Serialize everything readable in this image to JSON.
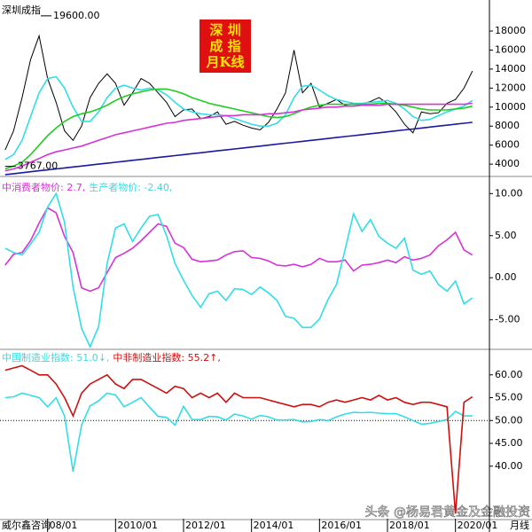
{
  "chart_data": [
    {
      "type": "line",
      "xlim": [
        2006.6,
        2021.0
      ],
      "ylim": [
        2800,
        20800
      ],
      "yticks": [
        4000,
        6000,
        8000,
        10000,
        12000,
        14000,
        16000,
        18000
      ],
      "x": [
        2006.75,
        2007.0,
        2007.25,
        2007.5,
        2007.75,
        2008.0,
        2008.25,
        2008.5,
        2008.75,
        2009.0,
        2009.25,
        2009.5,
        2009.75,
        2010.0,
        2010.25,
        2010.5,
        2010.75,
        2011.0,
        2011.25,
        2011.5,
        2011.75,
        2012.0,
        2012.25,
        2012.5,
        2012.75,
        2013.0,
        2013.25,
        2013.5,
        2013.75,
        2014.0,
        2014.25,
        2014.5,
        2014.75,
        2015.0,
        2015.25,
        2015.5,
        2015.75,
        2016.0,
        2016.25,
        2016.5,
        2016.75,
        2017.0,
        2017.25,
        2017.5,
        2017.75,
        2018.0,
        2018.25,
        2018.5,
        2018.75,
        2019.0,
        2019.25,
        2019.5,
        2019.75,
        2020.0,
        2020.25,
        2020.5
      ],
      "series": [
        {
          "name": "深圳成指",
          "color": "#000000",
          "values": [
            5500,
            7500,
            11000,
            15000,
            17500,
            13000,
            10500,
            7500,
            6500,
            8000,
            11000,
            12500,
            13500,
            12500,
            10200,
            11500,
            13000,
            12500,
            11500,
            10500,
            9000,
            9700,
            9800,
            8800,
            9000,
            9500,
            8200,
            8500,
            8100,
            7800,
            7600,
            8400,
            9800,
            11500,
            16000,
            11500,
            12500,
            10000,
            10400,
            10800,
            10200,
            10400,
            10300,
            10600,
            11000,
            10400,
            9500,
            8200,
            7300,
            9500,
            9300,
            9400,
            10400,
            10800,
            12000,
            13800
          ]
        },
        {
          "color": "#33dde6",
          "values": [
            4500,
            5000,
            6500,
            9000,
            11500,
            13000,
            13200,
            12000,
            10000,
            8500,
            8500,
            9500,
            11000,
            12000,
            12300,
            12000,
            11800,
            12000,
            11800,
            11300,
            10500,
            9800,
            9500,
            9300,
            9200,
            9200,
            9100,
            8800,
            8500,
            8200,
            8000,
            8000,
            8300,
            9200,
            11000,
            12200,
            12300,
            11800,
            11200,
            10800,
            10600,
            10400,
            10400,
            10500,
            10600,
            10700,
            10400,
            9800,
            9000,
            8600,
            8700,
            9100,
            9500,
            9800,
            10100,
            10700
          ]
        },
        {
          "color": "#22cc22",
          "values": [
            3500,
            3800,
            4200,
            5000,
            6000,
            7000,
            7800,
            8500,
            9000,
            9300,
            9500,
            9800,
            10200,
            10700,
            11100,
            11400,
            11600,
            11800,
            11900,
            11900,
            11700,
            11400,
            11000,
            10700,
            10400,
            10200,
            10000,
            9800,
            9600,
            9400,
            9200,
            9000,
            8900,
            9000,
            9300,
            9700,
            10000,
            10200,
            10300,
            10300,
            10300,
            10300,
            10300,
            10300,
            10400,
            10400,
            10300,
            10200,
            10000,
            9800,
            9700,
            9700,
            9700,
            9800,
            9900,
            10100
          ]
        },
        {
          "color": "#d633d6",
          "values": [
            3300,
            3500,
            3800,
            4200,
            4600,
            5000,
            5300,
            5500,
            5700,
            5900,
            6200,
            6500,
            6800,
            7100,
            7300,
            7500,
            7700,
            7900,
            8100,
            8300,
            8400,
            8600,
            8700,
            8800,
            8900,
            9000,
            9100,
            9100,
            9200,
            9200,
            9200,
            9300,
            9300,
            9400,
            9500,
            9700,
            9800,
            9900,
            10000,
            10000,
            10100,
            10100,
            10200,
            10200,
            10200,
            10300,
            10300,
            10300,
            10300,
            10300,
            10300,
            10300,
            10300,
            10300,
            10300,
            10400
          ]
        },
        {
          "color": "#1a1aa0",
          "values": [
            2900,
            3000,
            3100,
            3200,
            3300,
            3400,
            3500,
            3600,
            3700,
            3800,
            3900,
            4000,
            4100,
            4200,
            4300,
            4400,
            4500,
            4600,
            4700,
            4800,
            4900,
            5000,
            5100,
            5200,
            5300,
            5400,
            5500,
            5600,
            5700,
            5800,
            5900,
            6000,
            6100,
            6200,
            6300,
            6400,
            6500,
            6600,
            6700,
            6800,
            6900,
            7000,
            7100,
            7200,
            7300,
            7400,
            7500,
            7600,
            7700,
            7800,
            7900,
            8000,
            8100,
            8200,
            8300,
            8400
          ]
        }
      ],
      "annotations": [
        {
          "label": "19600.00",
          "x": 2007.8,
          "y": 19600
        },
        {
          "label": "3767.00",
          "x": 2006.75,
          "y": 3767
        }
      ]
    },
    {
      "type": "line",
      "xlim": [
        2006.6,
        2021.0
      ],
      "ylim": [
        -8.4,
        11.4
      ],
      "yticks": [
        {
          "value": -5,
          "label": "-5.00"
        },
        {
          "value": 0,
          "label": "0.00"
        },
        {
          "value": 5,
          "label": "5.00"
        },
        {
          "value": 10,
          "label": "10.00"
        }
      ],
      "x": [
        2006.75,
        2007.0,
        2007.25,
        2007.5,
        2007.75,
        2008.0,
        2008.25,
        2008.5,
        2008.75,
        2009.0,
        2009.25,
        2009.5,
        2009.75,
        2010.0,
        2010.25,
        2010.5,
        2010.75,
        2011.0,
        2011.25,
        2011.5,
        2011.75,
        2012.0,
        2012.25,
        2012.5,
        2012.75,
        2013.0,
        2013.25,
        2013.5,
        2013.75,
        2014.0,
        2014.25,
        2014.5,
        2014.75,
        2015.0,
        2015.25,
        2015.5,
        2015.75,
        2016.0,
        2016.25,
        2016.5,
        2016.75,
        2017.0,
        2017.25,
        2017.5,
        2017.75,
        2018.0,
        2018.25,
        2018.5,
        2018.75,
        2019.0,
        2019.25,
        2019.5,
        2019.75,
        2020.0,
        2020.25,
        2020.5
      ],
      "series": [
        {
          "name": "中消费者物价: 2.7,",
          "color": "#d633d6",
          "values": [
            1.5,
            2.8,
            3.0,
            4.4,
            6.5,
            8.3,
            7.7,
            4.9,
            3.0,
            -1.2,
            -1.6,
            -1.2,
            0.6,
            2.4,
            2.9,
            3.5,
            4.4,
            5.4,
            6.4,
            6.1,
            4.1,
            3.6,
            2.2,
            1.9,
            2.0,
            2.1,
            2.7,
            3.1,
            3.2,
            2.4,
            2.3,
            2.0,
            1.5,
            1.4,
            1.6,
            1.3,
            1.6,
            2.3,
            1.9,
            1.9,
            2.1,
            0.8,
            1.5,
            1.6,
            1.8,
            2.1,
            1.8,
            2.5,
            2.1,
            2.3,
            2.7,
            3.8,
            4.5,
            5.4,
            3.3,
            2.7
          ]
        },
        {
          "name": "生产者物价: -2.40,",
          "color": "#33dde6",
          "values": [
            3.5,
            3.0,
            2.7,
            4.0,
            5.4,
            8.4,
            10.0,
            6.6,
            -1.1,
            -6.0,
            -8.2,
            -5.8,
            1.7,
            5.9,
            6.4,
            4.3,
            5.9,
            7.3,
            7.5,
            5.0,
            1.7,
            -0.3,
            -2.1,
            -3.5,
            -1.9,
            -1.6,
            -2.7,
            -1.3,
            -1.4,
            -2.0,
            -1.1,
            -1.8,
            -2.7,
            -4.6,
            -4.8,
            -5.9,
            -5.9,
            -4.9,
            -2.6,
            -0.8,
            3.3,
            7.6,
            5.5,
            6.9,
            4.9,
            4.1,
            3.5,
            4.7,
            0.9,
            0.4,
            0.8,
            -0.8,
            -1.6,
            -0.4,
            -3.1,
            -2.4
          ]
        }
      ]
    },
    {
      "type": "line",
      "xlim": [
        2006.6,
        2021.0
      ],
      "ylim": [
        28.5,
        65
      ],
      "refline": 50,
      "yticks": [
        {
          "value": 40,
          "label": "40.00"
        },
        {
          "value": 45,
          "label": "45.00"
        },
        {
          "value": 50,
          "label": "50.00"
        },
        {
          "value": 55,
          "label": "55.00"
        },
        {
          "value": 60,
          "label": "60.00"
        }
      ],
      "xticks": [
        {
          "value": 2008.0,
          "label": "08/01"
        },
        {
          "value": 2010.0,
          "label": "2010/01"
        },
        {
          "value": 2012.0,
          "label": "2012/01"
        },
        {
          "value": 2014.0,
          "label": "2014/01"
        },
        {
          "value": 2016.0,
          "label": "2016/01"
        },
        {
          "value": 2018.0,
          "label": "2018/01"
        },
        {
          "value": 2020.0,
          "label": "2020/01"
        }
      ],
      "x": [
        2006.75,
        2007.0,
        2007.25,
        2007.5,
        2007.75,
        2008.0,
        2008.25,
        2008.5,
        2008.75,
        2009.0,
        2009.25,
        2009.5,
        2009.75,
        2010.0,
        2010.25,
        2010.5,
        2010.75,
        2011.0,
        2011.25,
        2011.5,
        2011.75,
        2012.0,
        2012.25,
        2012.5,
        2012.75,
        2013.0,
        2013.25,
        2013.5,
        2013.75,
        2014.0,
        2014.25,
        2014.5,
        2014.75,
        2015.0,
        2015.25,
        2015.5,
        2015.75,
        2016.0,
        2016.25,
        2016.5,
        2016.75,
        2017.0,
        2017.25,
        2017.5,
        2017.75,
        2018.0,
        2018.25,
        2018.5,
        2018.75,
        2019.0,
        2019.25,
        2019.5,
        2019.75,
        2020.0,
        2020.25,
        2020.5
      ],
      "series": [
        {
          "name": "中国制造业指数: 51.0↓,",
          "color": "#33dde6",
          "values": [
            55.0,
            55.2,
            56.0,
            55.5,
            55.0,
            53.0,
            55.0,
            51.0,
            38.8,
            49.0,
            53.2,
            54.3,
            56.0,
            55.6,
            53.0,
            54.0,
            55.0,
            52.9,
            50.9,
            50.7,
            49.0,
            53.1,
            50.2,
            50.2,
            50.9,
            50.8,
            50.1,
            51.4,
            51.0,
            50.3,
            51.1,
            50.8,
            50.1,
            50.1,
            50.2,
            49.7,
            49.8,
            50.2,
            50.0,
            50.8,
            51.4,
            51.8,
            51.7,
            51.8,
            51.6,
            51.5,
            51.5,
            50.8,
            50.0,
            49.2,
            49.4,
            49.8,
            50.2,
            52.0,
            51.0,
            51.0
          ]
        },
        {
          "name": "中非制造业指数: 55.2↑,",
          "color": "#cc1111",
          "values": [
            61.0,
            61.5,
            62.0,
            61.0,
            60.0,
            60.0,
            58.0,
            55.0,
            51.0,
            56.0,
            58.0,
            59.0,
            60.0,
            58.0,
            57.0,
            59.0,
            59.0,
            58.0,
            57.0,
            56.0,
            57.5,
            57.0,
            55.0,
            56.0,
            55.0,
            56.0,
            54.0,
            56.0,
            55.0,
            55.0,
            55.0,
            54.5,
            54.0,
            53.5,
            53.0,
            53.5,
            53.5,
            53.0,
            54.0,
            54.5,
            54.0,
            54.5,
            55.0,
            54.5,
            55.5,
            54.5,
            55.0,
            54.0,
            53.5,
            54.0,
            54.0,
            53.5,
            53.0,
            29.6,
            54.0,
            55.2
          ]
        }
      ]
    }
  ],
  "badge": [
    "深 圳",
    "成 指",
    "月K线"
  ],
  "footer": {
    "source": "威尔鑫咨询",
    "period": "月线",
    "watermark": "头条 @杨易君黄金及金融投资"
  }
}
